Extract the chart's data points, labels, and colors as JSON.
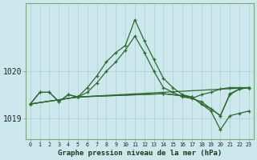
{
  "bg_color": "#cce8ec",
  "grid_color": "#aacdd2",
  "line_color": "#2d6a2d",
  "title": "Graphe pression niveau de la mer (hPa)",
  "xlim": [
    -0.5,
    23.5
  ],
  "ylim_min": 1018.55,
  "ylim_max": 1021.45,
  "yticks": [
    1019,
    1020
  ],
  "xticks": [
    0,
    1,
    2,
    3,
    4,
    5,
    6,
    7,
    8,
    9,
    10,
    11,
    12,
    13,
    14,
    15,
    16,
    17,
    18,
    19,
    20,
    21,
    22,
    23
  ],
  "series": [
    {
      "x": [
        0,
        1,
        2,
        3,
        4,
        5,
        6,
        7,
        8,
        9,
        10,
        11,
        12,
        13,
        14,
        15,
        16,
        17,
        18,
        19,
        20,
        21,
        22,
        23
      ],
      "y": [
        1019.3,
        1019.55,
        1019.55,
        1019.35,
        1019.5,
        1019.45,
        1019.65,
        1019.9,
        1020.2,
        1020.4,
        1020.55,
        1021.1,
        1020.65,
        1020.25,
        1019.85,
        1019.65,
        1019.5,
        1019.45,
        1019.3,
        1019.2,
        1019.05,
        1019.5,
        1019.62,
        1019.65
      ]
    },
    {
      "x": [
        0,
        1,
        2,
        3,
        4,
        5,
        6,
        7,
        8,
        9,
        10,
        11,
        12,
        13,
        14,
        15,
        16,
        17,
        18,
        19,
        20,
        21,
        22,
        23
      ],
      "y": [
        1019.3,
        1019.55,
        1019.55,
        1019.35,
        1019.5,
        1019.45,
        1019.55,
        1019.75,
        1020.0,
        1020.2,
        1020.45,
        1020.75,
        1020.4,
        1020.0,
        1019.65,
        1019.55,
        1019.45,
        1019.42,
        1019.5,
        1019.55,
        1019.62,
        1019.65,
        1019.65,
        1019.65
      ]
    },
    {
      "x": [
        0,
        5,
        23
      ],
      "y": [
        1019.3,
        1019.45,
        1019.65
      ]
    },
    {
      "x": [
        0,
        5,
        14,
        16,
        18,
        20,
        21,
        22,
        23
      ],
      "y": [
        1019.3,
        1019.45,
        1019.52,
        1019.48,
        1019.35,
        1019.05,
        1019.52,
        1019.62,
        1019.65
      ]
    },
    {
      "x": [
        0,
        5,
        14,
        17,
        19,
        20,
        21,
        22,
        23
      ],
      "y": [
        1019.3,
        1019.45,
        1019.52,
        1019.45,
        1019.15,
        1018.75,
        1019.05,
        1019.1,
        1019.15
      ]
    }
  ]
}
